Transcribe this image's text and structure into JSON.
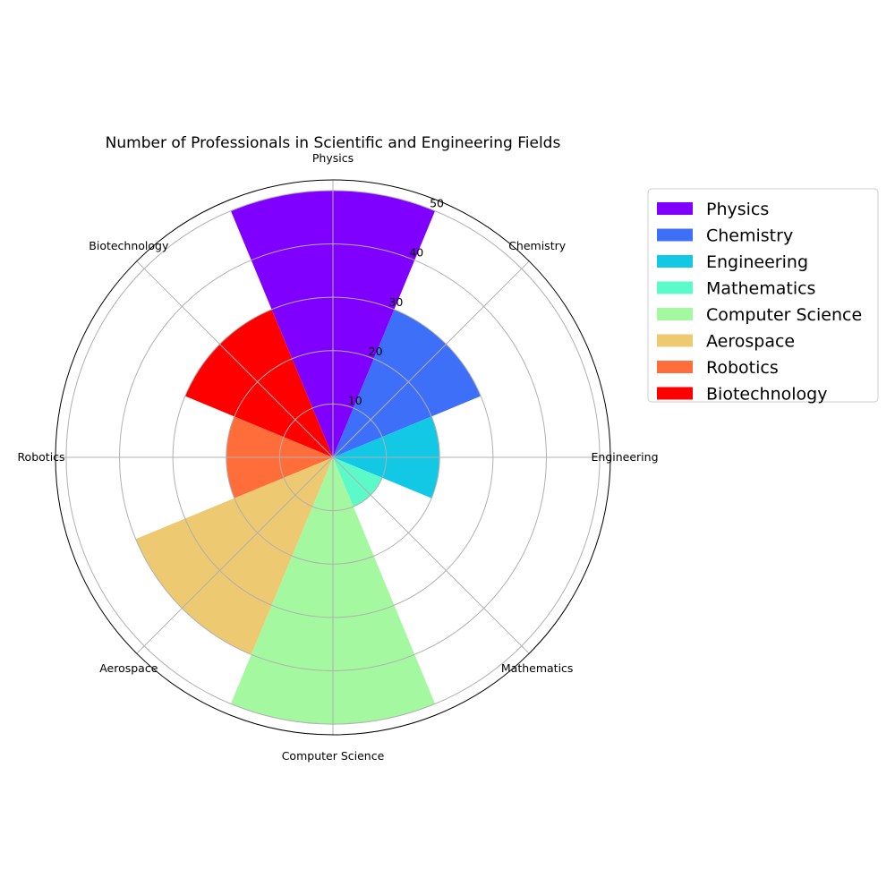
{
  "chart_data": {
    "type": "bar",
    "subtype": "polar",
    "title": "Number of Professionals in Scientific and Engineering Fields",
    "categories": [
      "Physics",
      "Chemistry",
      "Engineering",
      "Mathematics",
      "Computer Science",
      "Aerospace",
      "Robotics",
      "Biotechnology"
    ],
    "values": [
      50,
      30,
      20,
      10,
      50,
      40,
      20,
      30
    ],
    "colors": [
      "#8000ff",
      "#3d6ff9",
      "#12c8e5",
      "#5cfac9",
      "#a4f89f",
      "#edc971",
      "#ff6e3a",
      "#ff0000"
    ],
    "radial_ticks": [
      "10",
      "20",
      "30",
      "40",
      "50"
    ],
    "rlim": [
      0,
      52
    ],
    "grid": true,
    "legend": {
      "position": "right",
      "entries": [
        "Physics",
        "Chemistry",
        "Engineering",
        "Mathematics",
        "Computer Science",
        "Aerospace",
        "Robotics",
        "Biotechnology"
      ]
    }
  }
}
